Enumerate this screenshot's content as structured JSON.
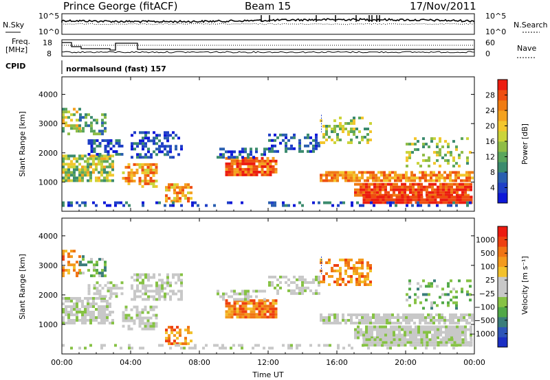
{
  "header": {
    "station": "Prince George (fitACF)",
    "beam": "Beam 15",
    "date": "17/Nov/2011"
  },
  "strip_labels": {
    "nsky": "N.Sky",
    "nsky_top": "10^5",
    "nsky_bot": "10^0",
    "nsearch": "N.Search",
    "nsearch_top": "10^5",
    "nsearch_bot": "10^0",
    "freq_line1": "Freq.",
    "freq_line2": "[MHz]",
    "freq_top": "18",
    "freq_bot": "8",
    "nave": "Nave",
    "nave_top": "60",
    "nave_bot": "0",
    "cpid": "CPID",
    "cpid_value": "normalsound (fast) 157"
  },
  "chart_data": [
    {
      "type": "heatmap",
      "panel": "power",
      "ylabel": "Slant Range [km]",
      "xlabel": "",
      "y_ticks": [
        "1000",
        "2000",
        "3000",
        "4000"
      ],
      "ylim": [
        0,
        4600
      ],
      "x_ticks": [
        "00:00",
        "04:00",
        "08:00",
        "12:00",
        "16:00",
        "20:00",
        "00:00"
      ],
      "xlim_hours": [
        0,
        24
      ],
      "colorbar": {
        "label": "Power [dB]",
        "ticks": [
          "4",
          "8",
          "12",
          "16",
          "20",
          "24",
          "28"
        ],
        "colors": [
          "#0d18d8",
          "#1f3fc7",
          "#2a5fb0",
          "#3b8b6e",
          "#5aa55c",
          "#8fbc45",
          "#cbd43a",
          "#f3c62d",
          "#f4a21f",
          "#f07c13",
          "#ee4e10",
          "#ec1c10"
        ]
      }
    },
    {
      "type": "heatmap",
      "panel": "velocity",
      "ylabel": "Slant Range [km]",
      "xlabel": "Time UT",
      "y_ticks": [
        "1000",
        "2000",
        "3000",
        "4000"
      ],
      "ylim": [
        0,
        4600
      ],
      "x_ticks": [
        "00:00",
        "04:00",
        "08:00",
        "12:00",
        "16:00",
        "20:00",
        "00:00"
      ],
      "xlim_hours": [
        0,
        24
      ],
      "colorbar": {
        "label": "Velocity [m s⁻¹]",
        "ticks": [
          "1000",
          "500",
          "100",
          "25",
          "−25",
          "−100",
          "−500",
          "−1000"
        ],
        "colors": [
          "#1b2fc4",
          "#2d55b8",
          "#3a7d7a",
          "#51a847",
          "#86c244",
          "#c8c8c8",
          "#c8c8c8",
          "#f2c12c",
          "#f39a1d",
          "#f07414",
          "#ee4010",
          "#ec1a10"
        ]
      }
    }
  ]
}
